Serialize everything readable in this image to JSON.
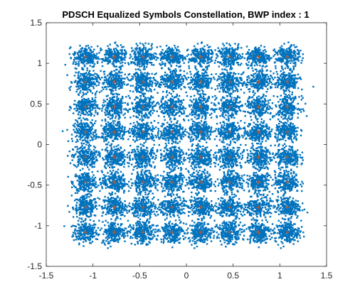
{
  "chart_data": {
    "type": "scatter",
    "title": "PDSCH Equalized Symbols Constellation, BWP index : 1",
    "xlabel": "",
    "ylabel": "",
    "xlim": [
      -1.5,
      1.5
    ],
    "ylim": [
      -1.5,
      1.5
    ],
    "x_ticks": [
      -1.5,
      -1,
      -0.5,
      0,
      0.5,
      1,
      1.5
    ],
    "y_ticks": [
      -1.5,
      -1,
      -0.5,
      0,
      0.5,
      1,
      1.5
    ],
    "x_tick_labels": [
      "-1.5",
      "-1",
      "-0.5",
      "0",
      "0.5",
      "1",
      "1.5"
    ],
    "y_tick_labels": [
      "-1.5",
      "-1",
      "-0.5",
      "0",
      "0.5",
      "1",
      "1.5"
    ],
    "grid": false,
    "legend": "none",
    "constellation_levels": [
      -1.0801,
      -0.7715,
      -0.4629,
      -0.1543,
      0.1543,
      0.4629,
      0.7715,
      1.0801
    ],
    "series": [
      {
        "marker": "dot",
        "color": "#0072BD",
        "noise_std": 0.065,
        "points_per_symbol": 220
      },
      {
        "marker": "plus",
        "color": "#D95319"
      }
    ],
    "colors": {
      "axes": "#262626",
      "background": "#ffffff"
    }
  }
}
